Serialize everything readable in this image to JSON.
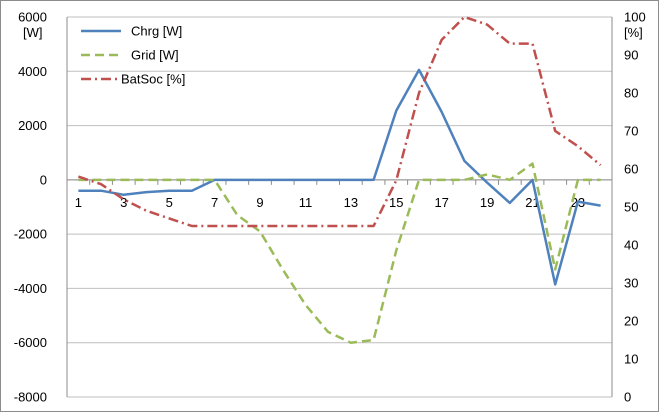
{
  "chart_data": {
    "type": "line",
    "title": "",
    "xlabel": "",
    "x": [
      1,
      2,
      3,
      4,
      5,
      6,
      7,
      8,
      9,
      10,
      11,
      12,
      13,
      14,
      15,
      16,
      17,
      18,
      19,
      20,
      21,
      22,
      23,
      24
    ],
    "x_tick_labels": [
      "1",
      "3",
      "5",
      "7",
      "9",
      "11",
      "13",
      "15",
      "17",
      "19",
      "21",
      "23"
    ],
    "y_left": {
      "unit": "[W]",
      "range": [
        -8000,
        6000
      ],
      "ticks": [
        "6000",
        "4000",
        "2000",
        "0",
        "-2000",
        "-4000",
        "-6000",
        "-8000"
      ]
    },
    "y_right": {
      "unit": "[%]",
      "range": [
        0,
        100
      ],
      "ticks": [
        "100",
        "90",
        "80",
        "70",
        "60",
        "50",
        "40",
        "30",
        "20",
        "10",
        "0"
      ]
    },
    "legend_position": "top-left",
    "grid": {
      "horizontal": true,
      "vertical": false
    },
    "series": [
      {
        "name": "Chrg [W]",
        "axis": "left",
        "color": "#4f81bd",
        "style": "solid",
        "values": [
          -400,
          -400,
          -550,
          -450,
          -400,
          -400,
          0,
          0,
          0,
          0,
          0,
          0,
          0,
          0,
          2550,
          4050,
          2500,
          700,
          -100,
          -850,
          0,
          -3850,
          -800,
          -950
        ]
      },
      {
        "name": "Grid [W]",
        "axis": "left",
        "color": "#9bbb59",
        "style": "dashed",
        "values": [
          0,
          0,
          0,
          0,
          0,
          0,
          0,
          -1300,
          -1900,
          -3300,
          -4600,
          -5600,
          -6000,
          -5900,
          -2600,
          0,
          0,
          0,
          200,
          0,
          600,
          -3300,
          0,
          0
        ]
      },
      {
        "name": "BatSoc [%]",
        "axis": "right",
        "color": "#c0504d",
        "style": "dash-dot",
        "values": [
          58,
          56,
          52,
          49,
          47,
          45,
          45,
          45,
          45,
          45,
          45,
          45,
          45,
          45,
          57,
          80,
          94,
          100,
          98,
          93,
          93,
          70,
          66,
          61
        ]
      }
    ]
  }
}
